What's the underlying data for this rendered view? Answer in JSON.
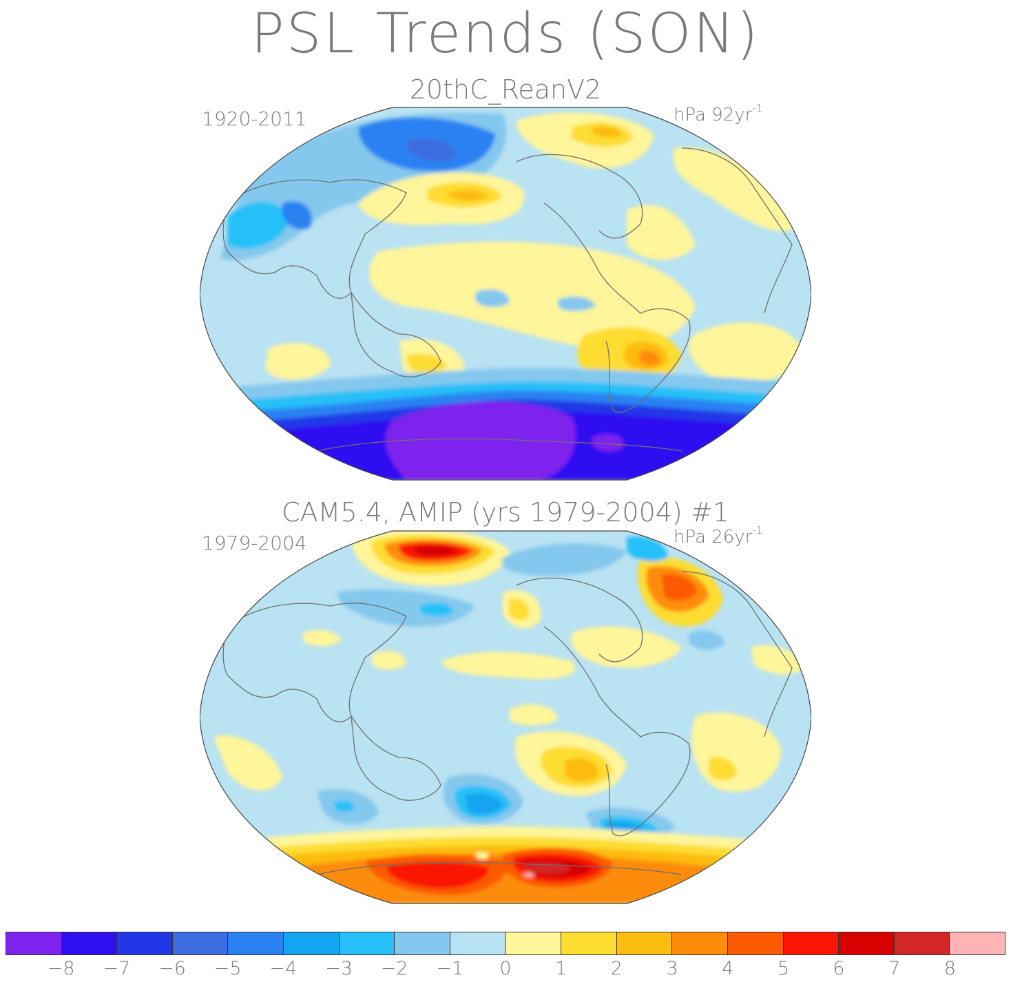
{
  "title": "PSL Trends (SON)",
  "panels": [
    {
      "title": "20thC_ReanV2",
      "period": "1920-2011",
      "units_base": "hPa 92yr",
      "units_exp": "-1"
    },
    {
      "title": "CAM5.4, AMIP (yrs 1979-2004)      #1",
      "period": "1979-2004",
      "units_base": "hPa 26yr",
      "units_exp": "-1"
    }
  ],
  "colorbar": {
    "labels": [
      "−8",
      "−7",
      "−6",
      "−5",
      "−4",
      "−3",
      "−2",
      "−1",
      "0",
      "1",
      "2",
      "3",
      "4",
      "5",
      "6",
      "7",
      "8"
    ],
    "colors": [
      "#7e22ee",
      "#2d0ff0",
      "#2238e8",
      "#3c6ce0",
      "#2a82f2",
      "#14a4f0",
      "#28c0f8",
      "#84c8ee",
      "#b9e2f2",
      "#fff59a",
      "#fddd30",
      "#fdbc10",
      "#fd8c0a",
      "#fb5a00",
      "#fa1505",
      "#d60000",
      "#d42828",
      "#feb4b4"
    ]
  },
  "map_colors": {
    "ocean_base": "#b9e2f2",
    "coast": "#707070"
  }
}
